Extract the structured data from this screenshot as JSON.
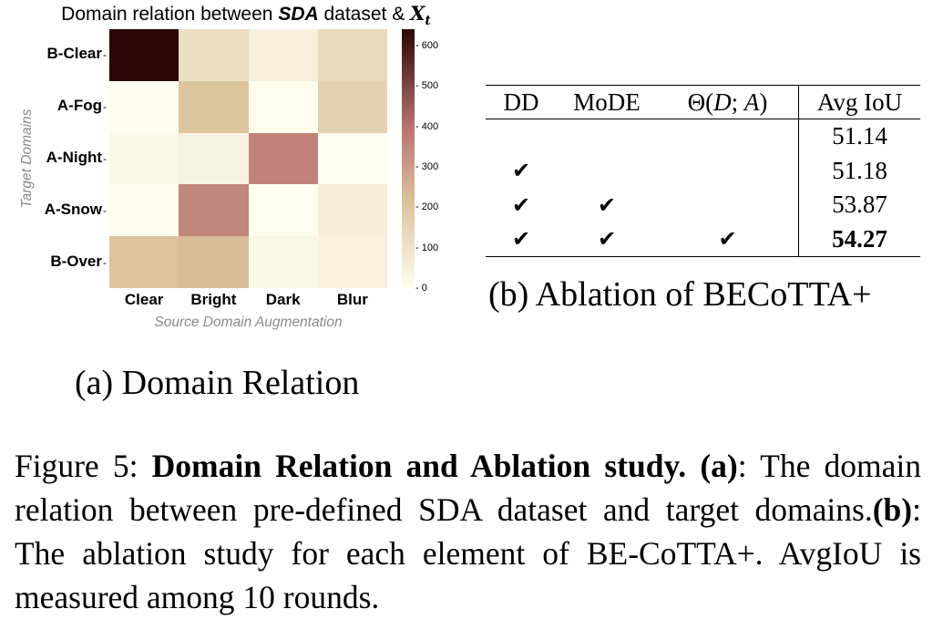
{
  "heatmap": {
    "title_prefix": "Domain relation between ",
    "title_bold": "SDA",
    "title_middle": " dataset & ",
    "title_symbol": "X",
    "title_subscript": "t",
    "xlabel": "Source Domain Augmentation",
    "ylabel": "Target Domains",
    "colorbar_ticks": [
      "600",
      "500",
      "400",
      "300",
      "200",
      "100",
      "0"
    ],
    "colorbar_colors": {
      "low": "#fefeef",
      "mid1": "#dcc39e",
      "mid2": "#b87270",
      "high": "#2b0707"
    }
  },
  "chart_data": {
    "type": "heatmap",
    "title": "Domain relation between SDA dataset & X_t",
    "xlabel": "Source Domain Augmentation",
    "ylabel": "Target Domains",
    "x_categories": [
      "Clear",
      "Bright",
      "Dark",
      "Blur"
    ],
    "y_categories": [
      "B-Clear",
      "A-Fog",
      "A-Night",
      "A-Snow",
      "B-Over"
    ],
    "values": [
      [
        640,
        115,
        50,
        130
      ],
      [
        5,
        205,
        2,
        160
      ],
      [
        22,
        40,
        360,
        2
      ],
      [
        5,
        350,
        2,
        55
      ],
      [
        210,
        225,
        25,
        45
      ]
    ],
    "colorbar_range": [
      0,
      640
    ]
  },
  "ablation": {
    "headers": [
      "DD",
      "MoDE",
      "Θ(",
      "D",
      "; ",
      "A",
      ")",
      "Avg IoU"
    ],
    "rows": [
      {
        "dd": "",
        "mode": "",
        "theta": "",
        "iou": "51.14"
      },
      {
        "dd": "✔",
        "mode": "",
        "theta": "",
        "iou": "51.18"
      },
      {
        "dd": "✔",
        "mode": "✔",
        "theta": "",
        "iou": "53.87"
      },
      {
        "dd": "✔",
        "mode": "✔",
        "theta": "✔",
        "iou": "54.27"
      }
    ]
  },
  "captions": {
    "a": "(a) Domain Relation",
    "b": "(b) Ablation of BECoTTA+",
    "figure_prefix": "Figure 5: ",
    "figure_title": "Domain Relation and Ablation study.",
    "figure_a_label": "(a)",
    "figure_a_text": ": The domain relation between pre-defined SDA dataset and target domains.",
    "figure_b_label": "(b)",
    "figure_b_text": ": The ablation study for each element of BE-CoTTA+. AvgIoU is measured among 10 rounds."
  }
}
